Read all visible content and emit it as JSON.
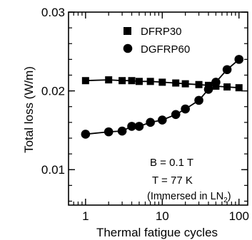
{
  "chart_data": {
    "type": "line",
    "title": "",
    "xlabel": "Thermal fatigue cycles",
    "ylabel": "Total loss (W/m)",
    "xscale": "log",
    "xlim": [
      0.6,
      130
    ],
    "ylim": [
      0.0055,
      0.03
    ],
    "yticks": [
      {
        "value": 0.01,
        "label": "0.01"
      },
      {
        "value": 0.02,
        "label": "0.02"
      },
      {
        "value": 0.03,
        "label": "0.03"
      }
    ],
    "xticks": [
      {
        "value": 1,
        "label": "1"
      },
      {
        "value": 10,
        "label": "10"
      },
      {
        "value": 100,
        "label": "100"
      }
    ],
    "grid": false,
    "legend_position": "top-right",
    "series": [
      {
        "name": "DFRP30",
        "marker": "square",
        "color": "#000000",
        "x": [
          1,
          2,
          3,
          4,
          5,
          7,
          10,
          15,
          20,
          30,
          40,
          50,
          70,
          100
        ],
        "y": [
          0.0213,
          0.0214,
          0.0213,
          0.0213,
          0.0212,
          0.0212,
          0.0211,
          0.021,
          0.0209,
          0.0208,
          0.0207,
          0.0206,
          0.0205,
          0.0204
        ]
      },
      {
        "name": "DGFRP60",
        "marker": "circle",
        "color": "#000000",
        "x": [
          1,
          2,
          3,
          4,
          5,
          7,
          10,
          15,
          20,
          30,
          40,
          50,
          70,
          100
        ],
        "y": [
          0.0145,
          0.0148,
          0.0149,
          0.0155,
          0.0155,
          0.016,
          0.0163,
          0.017,
          0.0177,
          0.0188,
          0.0202,
          0.0211,
          0.0227,
          0.024
        ]
      }
    ],
    "annotations": [
      {
        "id": "field",
        "text": "B = 0.1 T"
      },
      {
        "id": "temp",
        "text": "T = 77 K"
      },
      {
        "id": "medium",
        "text_main": "(Immersed in LN",
        "text_sub": "2",
        "text_end": ")"
      }
    ]
  }
}
